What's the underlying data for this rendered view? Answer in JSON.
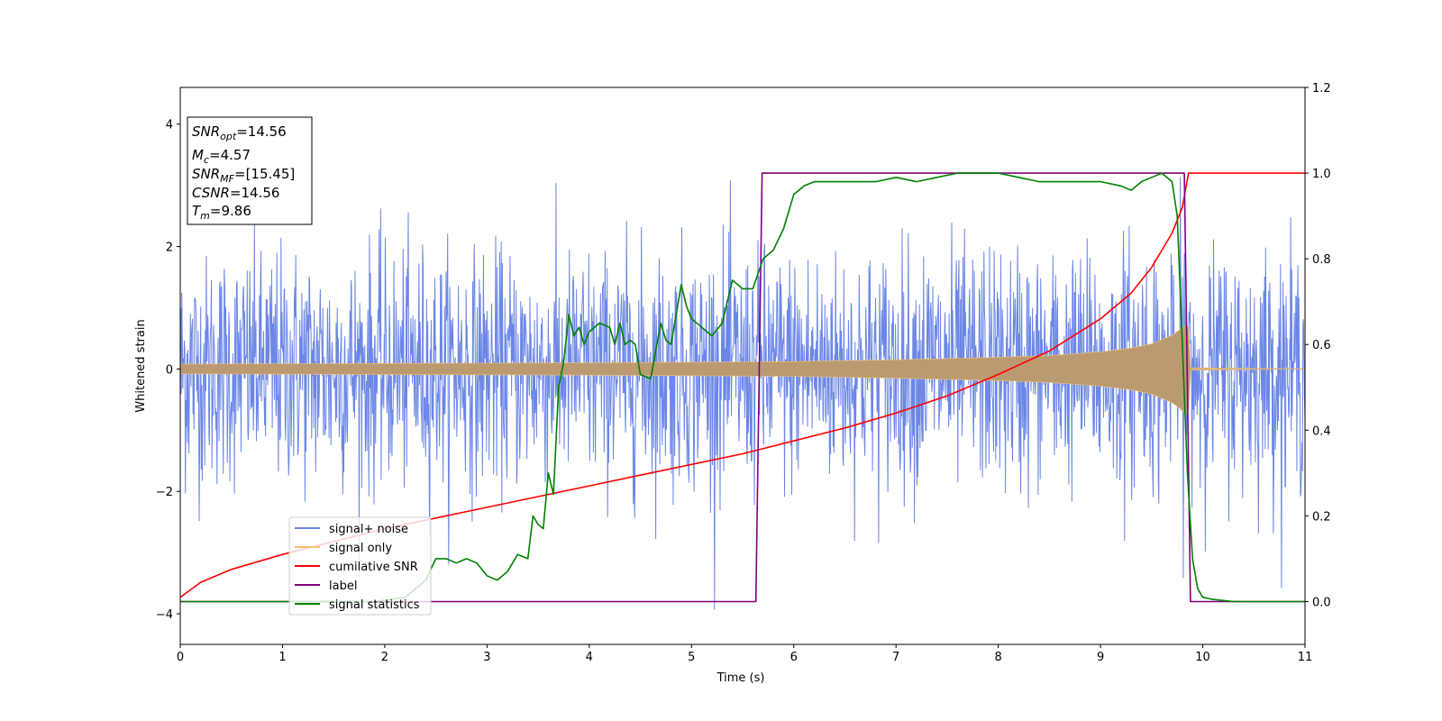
{
  "chart_data": {
    "type": "line",
    "xlabel": "Time (s)",
    "ylabel": "Whitened strain",
    "xlim": [
      0,
      11
    ],
    "ylim": [
      -4.5,
      4.6
    ],
    "y2lim": [
      -0.1,
      1.2
    ],
    "xticks": [
      "0",
      "1",
      "2",
      "3",
      "4",
      "5",
      "6",
      "7",
      "8",
      "9",
      "10",
      "11"
    ],
    "yticks": [
      "−4",
      "−2",
      "0",
      "2",
      "4"
    ],
    "y2ticks": [
      "0.0",
      "0.2",
      "0.4",
      "0.6",
      "0.8",
      "1.0",
      "1.2"
    ],
    "legend_position": "lower-left",
    "legend": [
      "signal+ noise",
      "signal only",
      "cumilative SNR",
      "label",
      "signal statistics"
    ],
    "colors": {
      "signal_noise": "#6b86e6",
      "signal_only": "#f5c26b",
      "cumulative_snr": "#ff0000",
      "label": "#800080",
      "signal_statistics": "#008000"
    },
    "stats_box": {
      "snr_opt": {
        "base": "SNR",
        "sub": "opt",
        "value": "=14.56"
      },
      "mc": {
        "base": "M",
        "sub": "c",
        "value": "=4.57"
      },
      "snr_mf": {
        "base": "SNR",
        "sub": "MF",
        "value": "=[15.45]"
      },
      "csnr": {
        "base": "CSNR",
        "value": "=14.56"
      },
      "tm": {
        "base": "T",
        "sub": "m",
        "value": "=9.86"
      }
    },
    "series": [
      {
        "name": "label",
        "axis": "right",
        "x": [
          0,
          5.63,
          5.69,
          9.82,
          9.88,
          11
        ],
        "values": [
          0,
          0,
          1,
          1,
          0,
          0
        ]
      },
      {
        "name": "cumilative SNR",
        "axis": "right",
        "x": [
          0,
          0.2,
          0.5,
          1.0,
          1.5,
          2.0,
          2.5,
          3.0,
          3.5,
          4.0,
          4.5,
          5.0,
          5.5,
          6.0,
          6.5,
          7.0,
          7.5,
          8.0,
          8.5,
          9.0,
          9.3,
          9.5,
          9.7,
          9.8,
          9.86,
          11
        ],
        "values": [
          0.01,
          0.045,
          0.075,
          0.11,
          0.14,
          0.17,
          0.195,
          0.22,
          0.245,
          0.27,
          0.295,
          0.32,
          0.345,
          0.375,
          0.405,
          0.44,
          0.48,
          0.53,
          0.585,
          0.66,
          0.72,
          0.78,
          0.86,
          0.92,
          1.0,
          1.0
        ]
      },
      {
        "name": "signal statistics",
        "axis": "right",
        "x": [
          0,
          1.9,
          2.2,
          2.4,
          2.5,
          2.6,
          2.7,
          2.8,
          2.9,
          3.0,
          3.1,
          3.2,
          3.3,
          3.4,
          3.45,
          3.5,
          3.55,
          3.6,
          3.65,
          3.7,
          3.75,
          3.8,
          3.85,
          3.9,
          3.95,
          4.0,
          4.1,
          4.2,
          4.25,
          4.3,
          4.35,
          4.4,
          4.45,
          4.5,
          4.6,
          4.7,
          4.75,
          4.8,
          4.9,
          4.95,
          5.0,
          5.1,
          5.2,
          5.3,
          5.4,
          5.5,
          5.6,
          5.7,
          5.8,
          5.9,
          6.0,
          6.1,
          6.2,
          6.4,
          6.6,
          6.8,
          7.0,
          7.2,
          7.4,
          7.6,
          7.8,
          8.0,
          8.2,
          8.4,
          8.6,
          8.8,
          9.0,
          9.2,
          9.3,
          9.4,
          9.5,
          9.6,
          9.7,
          9.75,
          9.8,
          9.85,
          9.9,
          9.95,
          10.0,
          10.1,
          10.3,
          11
        ],
        "values": [
          0.0,
          0.0,
          0.01,
          0.05,
          0.1,
          0.1,
          0.09,
          0.1,
          0.09,
          0.06,
          0.05,
          0.07,
          0.11,
          0.1,
          0.2,
          0.18,
          0.17,
          0.3,
          0.25,
          0.5,
          0.56,
          0.67,
          0.62,
          0.64,
          0.6,
          0.63,
          0.65,
          0.64,
          0.6,
          0.65,
          0.6,
          0.61,
          0.6,
          0.53,
          0.52,
          0.65,
          0.61,
          0.6,
          0.74,
          0.69,
          0.66,
          0.64,
          0.62,
          0.65,
          0.75,
          0.73,
          0.73,
          0.8,
          0.82,
          0.87,
          0.95,
          0.97,
          0.98,
          0.98,
          0.98,
          0.98,
          0.99,
          0.98,
          0.99,
          1.0,
          1.0,
          1.0,
          0.99,
          0.98,
          0.98,
          0.98,
          0.98,
          0.97,
          0.96,
          0.98,
          0.99,
          1.0,
          0.98,
          0.9,
          0.6,
          0.3,
          0.1,
          0.03,
          0.01,
          0.005,
          0.0,
          0.0
        ]
      },
      {
        "name": "signal only",
        "axis": "left",
        "envelope": {
          "t": [
            0,
            2,
            4,
            6,
            7,
            8,
            8.5,
            9,
            9.3,
            9.5,
            9.7,
            9.86,
            9.88,
            11
          ],
          "amp": [
            0.08,
            0.09,
            0.1,
            0.12,
            0.15,
            0.19,
            0.22,
            0.28,
            0.34,
            0.41,
            0.55,
            0.75,
            0.02,
            0.0
          ]
        }
      },
      {
        "name": "signal+ noise",
        "axis": "left",
        "noise_sigma": 0.95,
        "samples": 2200
      }
    ]
  }
}
